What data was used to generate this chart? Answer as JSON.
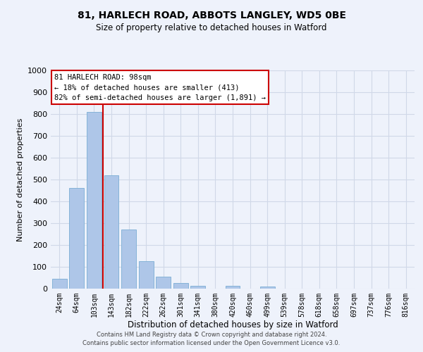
{
  "title": "81, HARLECH ROAD, ABBOTS LANGLEY, WD5 0BE",
  "subtitle": "Size of property relative to detached houses in Watford",
  "xlabel": "Distribution of detached houses by size in Watford",
  "ylabel": "Number of detached properties",
  "categories": [
    "24sqm",
    "64sqm",
    "103sqm",
    "143sqm",
    "182sqm",
    "222sqm",
    "262sqm",
    "301sqm",
    "341sqm",
    "380sqm",
    "420sqm",
    "460sqm",
    "499sqm",
    "539sqm",
    "578sqm",
    "618sqm",
    "658sqm",
    "697sqm",
    "737sqm",
    "776sqm",
    "816sqm"
  ],
  "values": [
    46,
    462,
    810,
    518,
    270,
    126,
    56,
    26,
    12,
    0,
    14,
    0,
    10,
    0,
    0,
    0,
    0,
    0,
    0,
    0,
    0
  ],
  "bar_color": "#aec6e8",
  "bar_edge_color": "#7aadd4",
  "grid_color": "#d0d8e8",
  "background_color": "#eef2fb",
  "annotation_text": "81 HARLECH ROAD: 98sqm\n← 18% of detached houses are smaller (413)\n82% of semi-detached houses are larger (1,891) →",
  "annotation_box_color": "#ffffff",
  "annotation_border_color": "#cc0000",
  "red_line_x": 2.5,
  "ylim": [
    0,
    1000
  ],
  "yticks": [
    0,
    100,
    200,
    300,
    400,
    500,
    600,
    700,
    800,
    900,
    1000
  ],
  "footer_line1": "Contains HM Land Registry data © Crown copyright and database right 2024.",
  "footer_line2": "Contains public sector information licensed under the Open Government Licence v3.0."
}
